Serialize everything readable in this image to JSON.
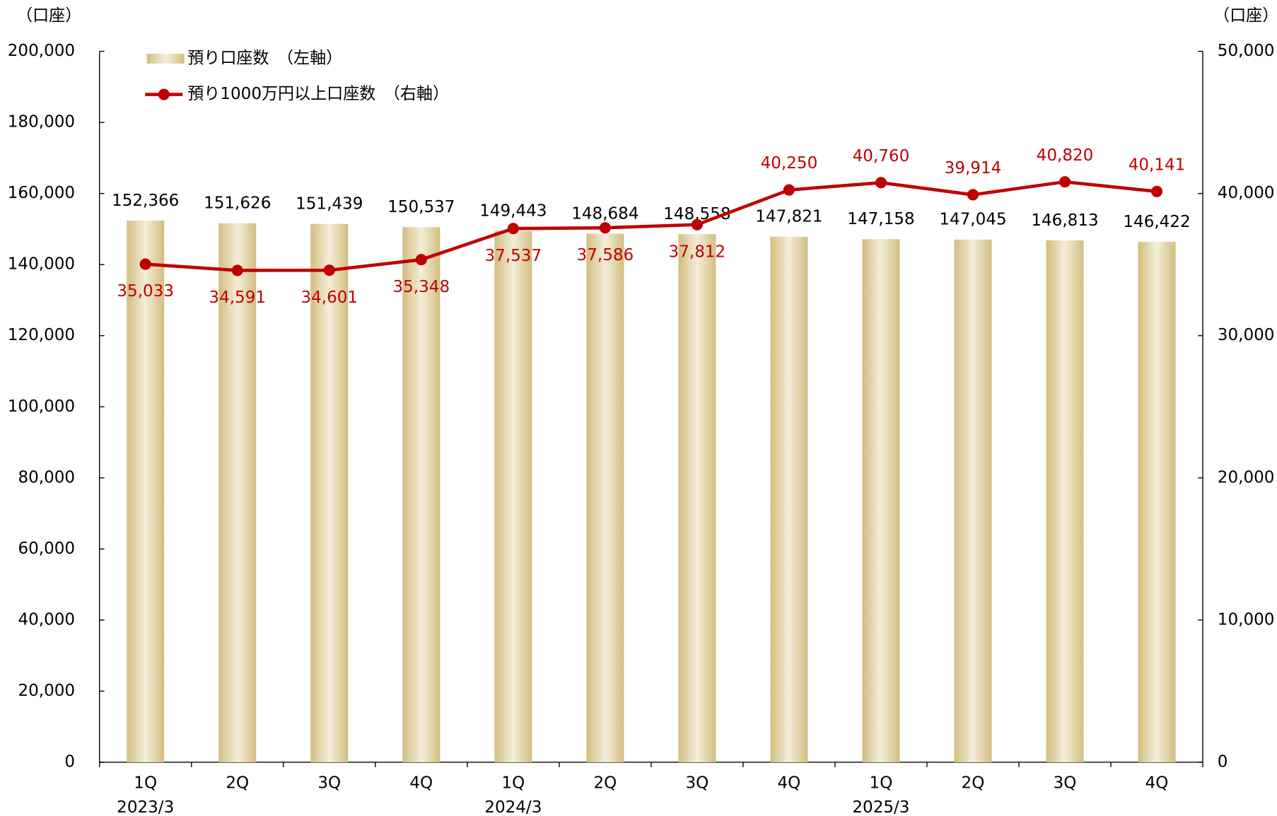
{
  "chart_data": {
    "type": "bar-line",
    "categories": [
      "1Q",
      "2Q",
      "3Q",
      "4Q",
      "1Q",
      "2Q",
      "3Q",
      "4Q",
      "1Q",
      "2Q",
      "3Q",
      "4Q"
    ],
    "category_groups": [
      "2023/3",
      null,
      null,
      null,
      "2024/3",
      null,
      null,
      null,
      "2025/3",
      null,
      null,
      null
    ],
    "y_label": "（口座）",
    "y2_label": "（口座）",
    "series": [
      {
        "name": "預り口座数　（左軸）",
        "type": "bar",
        "axis": "y",
        "color": "#d8c58f",
        "values": [
          152366,
          151626,
          151439,
          150537,
          149443,
          148684,
          148558,
          147821,
          147158,
          147045,
          146813,
          146422
        ],
        "value_labels": [
          "152,366",
          "151,626",
          "151,439",
          "150,537",
          "149,443",
          "148,684",
          "148,558",
          "147,821",
          "147,158",
          "147,045",
          "146,813",
          "146,422"
        ]
      },
      {
        "name": "預り1000万円以上口座数　（右軸）",
        "type": "line",
        "axis": "y2",
        "color": "#c00000",
        "values": [
          35033,
          34591,
          34601,
          35348,
          37537,
          37586,
          37812,
          40250,
          40760,
          39914,
          40820,
          40141
        ],
        "value_labels": [
          "35,033",
          "34,591",
          "34,601",
          "35,348",
          "37,537",
          "37,586",
          "37,812",
          "40,250",
          "40,760",
          "39,914",
          "40,820",
          "40,141"
        ]
      }
    ],
    "ylim": [
      0,
      200000
    ],
    "yticks": [
      0,
      {
        "value": 20000,
        "label": "20,000"
      },
      {
        "value": 40000,
        "label": "40,000"
      },
      {
        "value": 60000,
        "label": "60,000"
      },
      {
        "value": 80000,
        "label": "80,000"
      },
      {
        "value": 100000,
        "label": "100,000"
      },
      {
        "value": 120000,
        "label": "120,000"
      },
      {
        "value": 140000,
        "label": "140,000"
      },
      {
        "value": 160000,
        "label": "160,000"
      },
      {
        "value": 180000,
        "label": "180,000"
      },
      {
        "value": 200000,
        "label": "200,000"
      }
    ],
    "y2lim": [
      0,
      50000
    ],
    "y2ticks": [
      0,
      {
        "value": 10000,
        "label": "10,000"
      },
      {
        "value": 20000,
        "label": "20,000"
      },
      {
        "value": 30000,
        "label": "30,000"
      },
      {
        "value": 40000,
        "label": "40,000"
      },
      {
        "value": 50000,
        "label": "50,000"
      }
    ],
    "grid": false
  }
}
